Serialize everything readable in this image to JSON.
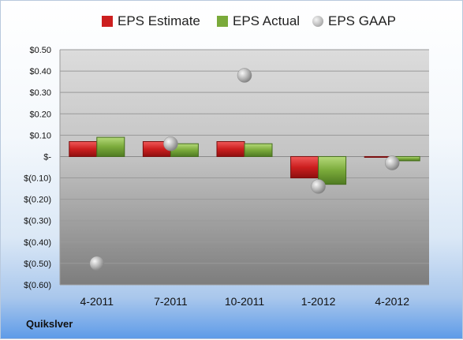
{
  "company": "Quikslver",
  "legend": {
    "estimate": "EPS Estimate",
    "actual": "EPS Actual",
    "gaap": "EPS GAAP"
  },
  "colors": {
    "estimate": "#cc1f1f",
    "actual": "#7aaa3a",
    "gaap": "#a9a9a9"
  },
  "chart_data": {
    "type": "bar",
    "categories": [
      "4-2011",
      "7-2011",
      "10-2011",
      "1-2012",
      "4-2012"
    ],
    "series": [
      {
        "name": "EPS Estimate",
        "values": [
          0.07,
          0.07,
          0.07,
          -0.1,
          0.0
        ]
      },
      {
        "name": "EPS Actual",
        "values": [
          0.09,
          0.06,
          0.06,
          -0.13,
          -0.02
        ]
      },
      {
        "name": "EPS GAAP",
        "values": [
          -0.5,
          0.06,
          0.38,
          -0.14,
          -0.03
        ]
      }
    ],
    "ylim": [
      -0.6,
      0.5
    ],
    "yticks": [
      0.5,
      0.4,
      0.3,
      0.2,
      0.1,
      0.0,
      -0.1,
      -0.2,
      -0.3,
      -0.4,
      -0.5,
      -0.6
    ],
    "ytick_labels": [
      "$0.50",
      "$0.40",
      "$0.30",
      "$0.20",
      "$0.10",
      "$-",
      "$(0.10)",
      "$(0.20)",
      "$(0.30)",
      "$(0.40)",
      "$(0.50)",
      "$(0.60)"
    ],
    "grid": true,
    "legend_position": "top"
  }
}
